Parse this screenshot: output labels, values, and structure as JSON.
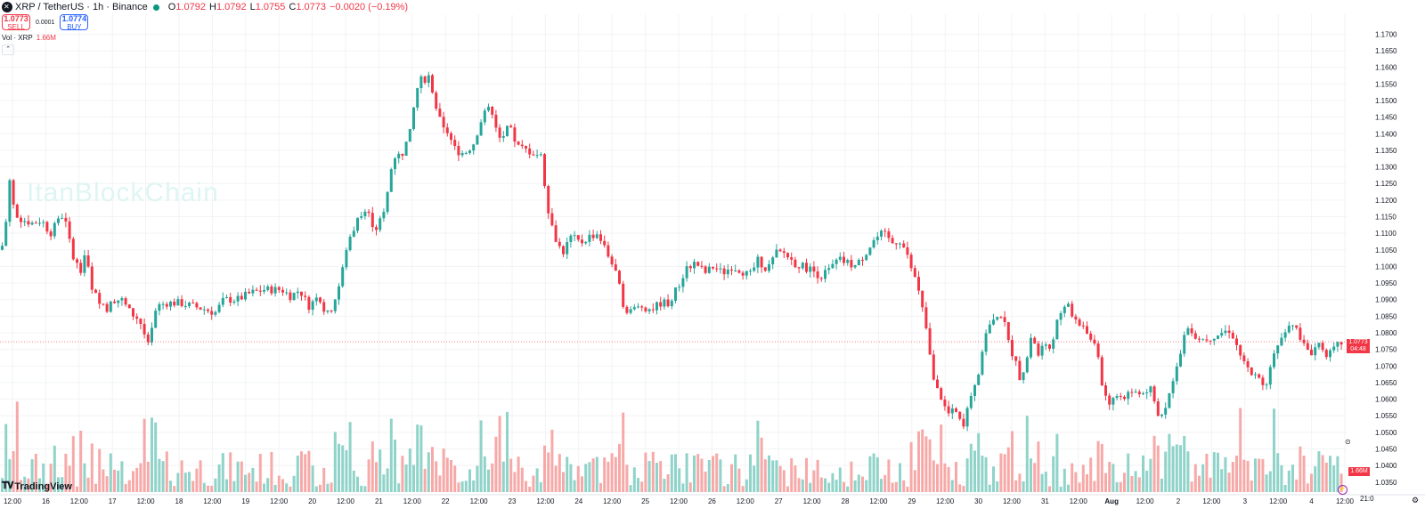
{
  "header": {
    "symbol": "XRP / TetherUS · 1h · Binance",
    "o_label": "O",
    "o_value": "1.0792",
    "h_label": "H",
    "h_value": "1.0792",
    "l_label": "L",
    "l_value": "1.0755",
    "c_label": "C",
    "c_value": "1.0773",
    "change": "−0.0020 (−0.19%)"
  },
  "trade": {
    "sell_price": "1.0773",
    "sell_label": "SELL",
    "buy_price": "1.0774",
    "buy_label": "BUY",
    "spread": "0.0001"
  },
  "volume_legend": {
    "label": "Vol · XRP",
    "value": "1.66M"
  },
  "watermark": "ItanBlockChain",
  "brand": "TradingView",
  "price_tag": {
    "price": "1.0773",
    "countdown": "04:48"
  },
  "volume_tag": "1.66M",
  "axis_footer": {
    "timezone": "21:0"
  },
  "colors": {
    "up": "#26a69a",
    "down": "#f23645",
    "up_vol": "#8fd3c9",
    "down_vol": "#f7a9a8",
    "grid": "#f2f3f5"
  },
  "chart_data": {
    "type": "candlestick",
    "title": "XRP / TetherUS · 1h · Binance",
    "x_ticks": [
      "12:00",
      "16",
      "12:00",
      "17",
      "12:00",
      "18",
      "12:00",
      "19",
      "12:00",
      "20",
      "12:00",
      "21",
      "12:00",
      "22",
      "12:00",
      "23",
      "12:00",
      "24",
      "12:00",
      "25",
      "12:00",
      "26",
      "12:00",
      "27",
      "12:00",
      "28",
      "12:00",
      "29",
      "12:00",
      "30",
      "12:00",
      "31",
      "12:00",
      "Aug",
      "12:00",
      "2",
      "12:00",
      "3",
      "12:00",
      "4",
      "12:00"
    ],
    "y_ticks": [
      "1.1700",
      "1.1650",
      "1.1600",
      "1.1550",
      "1.1500",
      "1.1450",
      "1.1400",
      "1.1350",
      "1.1300",
      "1.1250",
      "1.1200",
      "1.1150",
      "1.1100",
      "1.1050",
      "1.1000",
      "1.0950",
      "1.0900",
      "1.0850",
      "1.0800",
      "1.0750",
      "1.0700",
      "1.0650",
      "1.0600",
      "1.0550",
      "1.0500",
      "1.0450",
      "1.0400",
      "1.0350"
    ],
    "ylim": [
      1.032,
      1.176
    ],
    "last_price": 1.0773,
    "price_path": [
      [
        0,
        1.105
      ],
      [
        4,
        1.11
      ],
      [
        10,
        1.128
      ],
      [
        15,
        1.115
      ],
      [
        25,
        1.114
      ],
      [
        35,
        1.113
      ],
      [
        45,
        1.114
      ],
      [
        55,
        1.11
      ],
      [
        70,
        1.116
      ],
      [
        80,
        1.103
      ],
      [
        90,
        1.098
      ],
      [
        95,
        1.106
      ],
      [
        100,
        1.093
      ],
      [
        110,
        1.09
      ],
      [
        120,
        1.087
      ],
      [
        125,
        1.09
      ],
      [
        135,
        1.09
      ],
      [
        145,
        1.086
      ],
      [
        155,
        1.084
      ],
      [
        160,
        1.08
      ],
      [
        165,
        1.076
      ],
      [
        170,
        1.082
      ],
      [
        175,
        1.088
      ],
      [
        185,
        1.089
      ],
      [
        200,
        1.089
      ],
      [
        215,
        1.088
      ],
      [
        230,
        1.087
      ],
      [
        240,
        1.086
      ],
      [
        250,
        1.09
      ],
      [
        265,
        1.09
      ],
      [
        280,
        1.092
      ],
      [
        295,
        1.093
      ],
      [
        315,
        1.093
      ],
      [
        325,
        1.091
      ],
      [
        335,
        1.093
      ],
      [
        345,
        1.088
      ],
      [
        355,
        1.092
      ],
      [
        365,
        1.085
      ],
      [
        372,
        1.088
      ],
      [
        380,
        1.095
      ],
      [
        390,
        1.108
      ],
      [
        400,
        1.114
      ],
      [
        410,
        1.117
      ],
      [
        420,
        1.111
      ],
      [
        430,
        1.116
      ],
      [
        440,
        1.133
      ],
      [
        450,
        1.134
      ],
      [
        460,
        1.141
      ],
      [
        465,
        1.152
      ],
      [
        470,
        1.156
      ],
      [
        480,
        1.157
      ],
      [
        485,
        1.15
      ],
      [
        490,
        1.145
      ],
      [
        500,
        1.141
      ],
      [
        510,
        1.135
      ],
      [
        520,
        1.134
      ],
      [
        530,
        1.137
      ],
      [
        540,
        1.145
      ],
      [
        550,
        1.148
      ],
      [
        560,
        1.138
      ],
      [
        570,
        1.142
      ],
      [
        580,
        1.136
      ],
      [
        590,
        1.135
      ],
      [
        600,
        1.134
      ],
      [
        607,
        1.133
      ],
      [
        612,
        1.12
      ],
      [
        620,
        1.11
      ],
      [
        630,
        1.104
      ],
      [
        640,
        1.109
      ],
      [
        650,
        1.107
      ],
      [
        660,
        1.109
      ],
      [
        670,
        1.11
      ],
      [
        680,
        1.104
      ],
      [
        690,
        1.098
      ],
      [
        700,
        1.087
      ],
      [
        710,
        1.087
      ],
      [
        720,
        1.088
      ],
      [
        730,
        1.087
      ],
      [
        740,
        1.089
      ],
      [
        750,
        1.089
      ],
      [
        760,
        1.094
      ],
      [
        770,
        1.1
      ],
      [
        780,
        1.101
      ],
      [
        790,
        1.098
      ],
      [
        800,
        1.1
      ],
      [
        810,
        1.098
      ],
      [
        820,
        1.1
      ],
      [
        830,
        1.099
      ],
      [
        840,
        1.097
      ],
      [
        850,
        1.102
      ],
      [
        860,
        1.099
      ],
      [
        870,
        1.104
      ],
      [
        880,
        1.104
      ],
      [
        890,
        1.101
      ],
      [
        900,
        1.1
      ],
      [
        910,
        1.099
      ],
      [
        920,
        1.097
      ],
      [
        930,
        1.099
      ],
      [
        940,
        1.102
      ],
      [
        950,
        1.101
      ],
      [
        960,
        1.1
      ],
      [
        970,
        1.104
      ],
      [
        980,
        1.108
      ],
      [
        990,
        1.11
      ],
      [
        1000,
        1.107
      ],
      [
        1010,
        1.108
      ],
      [
        1020,
        1.101
      ],
      [
        1030,
        1.092
      ],
      [
        1035,
        1.086
      ],
      [
        1040,
        1.079
      ],
      [
        1045,
        1.067
      ],
      [
        1050,
        1.063
      ],
      [
        1055,
        1.061
      ],
      [
        1060,
        1.057
      ],
      [
        1065,
        1.055
      ],
      [
        1070,
        1.057
      ],
      [
        1075,
        1.054
      ],
      [
        1080,
        1.051
      ],
      [
        1085,
        1.057
      ],
      [
        1090,
        1.063
      ],
      [
        1095,
        1.066
      ],
      [
        1100,
        1.072
      ],
      [
        1105,
        1.08
      ],
      [
        1110,
        1.083
      ],
      [
        1115,
        1.083
      ],
      [
        1120,
        1.087
      ],
      [
        1125,
        1.084
      ],
      [
        1130,
        1.078
      ],
      [
        1135,
        1.074
      ],
      [
        1140,
        1.07
      ],
      [
        1145,
        1.065
      ],
      [
        1150,
        1.069
      ],
      [
        1155,
        1.079
      ],
      [
        1160,
        1.077
      ],
      [
        1165,
        1.072
      ],
      [
        1170,
        1.077
      ],
      [
        1175,
        1.074
      ],
      [
        1180,
        1.078
      ],
      [
        1185,
        1.083
      ],
      [
        1190,
        1.085
      ],
      [
        1195,
        1.089
      ],
      [
        1200,
        1.087
      ],
      [
        1205,
        1.083
      ],
      [
        1210,
        1.083
      ],
      [
        1215,
        1.082
      ],
      [
        1220,
        1.08
      ],
      [
        1225,
        1.077
      ],
      [
        1230,
        1.074
      ],
      [
        1235,
        1.066
      ],
      [
        1240,
        1.061
      ],
      [
        1245,
        1.059
      ],
      [
        1250,
        1.06
      ],
      [
        1255,
        1.062
      ],
      [
        1260,
        1.06
      ],
      [
        1265,
        1.062
      ],
      [
        1270,
        1.062
      ],
      [
        1275,
        1.062
      ],
      [
        1280,
        1.061
      ],
      [
        1285,
        1.063
      ],
      [
        1290,
        1.063
      ],
      [
        1295,
        1.058
      ],
      [
        1300,
        1.055
      ],
      [
        1305,
        1.057
      ],
      [
        1310,
        1.06
      ],
      [
        1315,
        1.066
      ],
      [
        1320,
        1.071
      ],
      [
        1325,
        1.074
      ],
      [
        1330,
        1.081
      ],
      [
        1335,
        1.082
      ],
      [
        1340,
        1.079
      ],
      [
        1350,
        1.078
      ],
      [
        1360,
        1.079
      ],
      [
        1370,
        1.08
      ],
      [
        1380,
        1.081
      ],
      [
        1390,
        1.074
      ],
      [
        1400,
        1.069
      ],
      [
        1410,
        1.066
      ],
      [
        1420,
        1.065
      ],
      [
        1430,
        1.074
      ],
      [
        1440,
        1.081
      ],
      [
        1450,
        1.083
      ],
      [
        1460,
        1.077
      ],
      [
        1470,
        1.074
      ],
      [
        1480,
        1.077
      ],
      [
        1490,
        1.073
      ],
      [
        1500,
        1.076
      ],
      [
        1506,
        1.0773
      ]
    ],
    "series": [
      {
        "name": "Vol · XRP"
      }
    ]
  }
}
